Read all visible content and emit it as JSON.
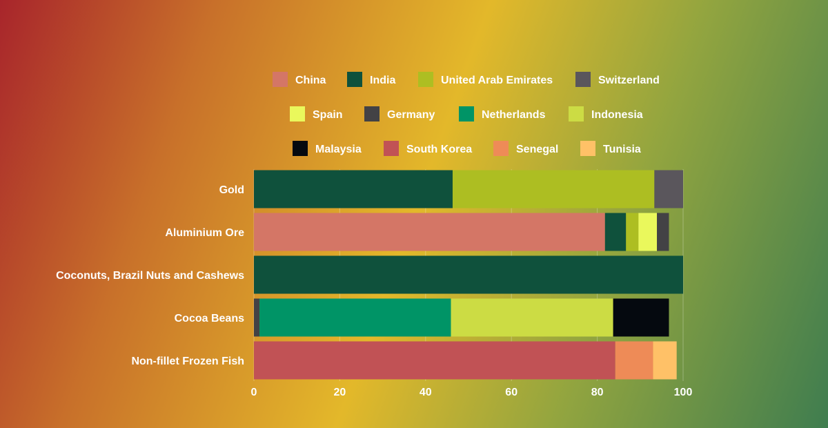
{
  "chart_data": {
    "type": "bar",
    "orientation": "horizontal",
    "stacked": true,
    "categories": [
      "Gold",
      "Aluminium Ore",
      "Coconuts, Brazil Nuts and Cashews",
      "Cocoa Beans",
      "Non-fillet Frozen Fish"
    ],
    "xlim": [
      0,
      100
    ],
    "xticks": [
      "0",
      "20",
      "40",
      "60",
      "80",
      "100"
    ],
    "grid": true,
    "legend_position": "top",
    "series": [
      {
        "name": "China",
        "color": "#d47666",
        "values": [
          0,
          81.8,
          0,
          0,
          0
        ]
      },
      {
        "name": "India",
        "color": "#0f513c",
        "values": [
          46.3,
          4.9,
          100,
          0,
          0
        ]
      },
      {
        "name": "United Arab Emirates",
        "color": "#adbe22",
        "values": [
          47.0,
          2.9,
          0,
          0,
          0
        ]
      },
      {
        "name": "Switzerland",
        "color": "#5a565c",
        "values": [
          6.7,
          0,
          0,
          0,
          0
        ]
      },
      {
        "name": "Spain",
        "color": "#eaf85c",
        "values": [
          0,
          4.3,
          0,
          0,
          0
        ]
      },
      {
        "name": "Germany",
        "color": "#434245",
        "values": [
          0,
          2.8,
          0,
          1.3,
          0
        ]
      },
      {
        "name": "Netherlands",
        "color": "#009466",
        "values": [
          0,
          0,
          0,
          44.6,
          0
        ]
      },
      {
        "name": "Indonesia",
        "color": "#ccdc44",
        "values": [
          0,
          0,
          0,
          37.8,
          0
        ]
      },
      {
        "name": "Malaysia",
        "color": "#05090f",
        "values": [
          0,
          0,
          0,
          13.0,
          0
        ]
      },
      {
        "name": "South Korea",
        "color": "#c15255",
        "values": [
          0,
          0,
          0,
          0,
          84.2
        ]
      },
      {
        "name": "Senegal",
        "color": "#ee8b57",
        "values": [
          0,
          0,
          0,
          0,
          8.8
        ]
      },
      {
        "name": "Tunisia",
        "color": "#ffc167",
        "values": [
          0,
          0,
          0,
          0,
          5.5
        ]
      }
    ]
  }
}
